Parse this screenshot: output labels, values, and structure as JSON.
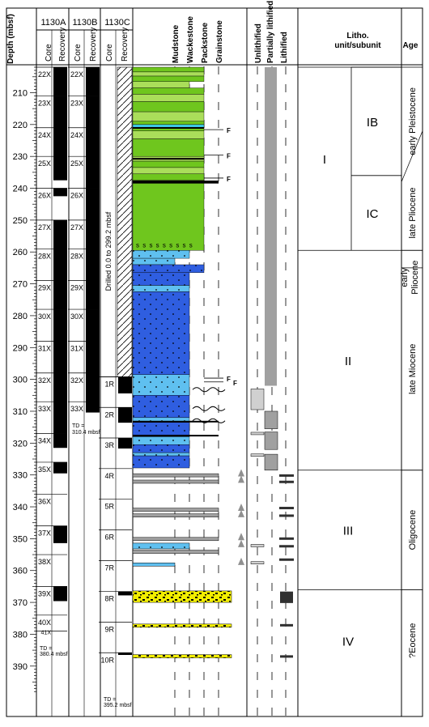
{
  "header": {
    "depth": "Depth (mbsf)",
    "holes": [
      "1130A",
      "1130B",
      "1130C"
    ],
    "core": "Core",
    "recovery": "Recovery",
    "lith_labels": [
      "Mudstone",
      "Wackestone",
      "Packstone",
      "Grainstone"
    ],
    "lithif_labels": [
      "Unlithified",
      "Partially lithified",
      "Lithified"
    ],
    "unit_title_1": "Litho.",
    "unit_title_2": "unit/subunit",
    "age": "Age"
  },
  "depth_ticks": [
    210,
    220,
    230,
    240,
    250,
    260,
    270,
    280,
    290,
    300,
    310,
    320,
    330,
    340,
    350,
    360,
    370,
    380,
    390
  ],
  "cores_A": [
    {
      "label": "22X",
      "top": 202,
      "bottom": 211,
      "rec": 211
    },
    {
      "label": "23X",
      "top": 211,
      "bottom": 221,
      "rec": 221
    },
    {
      "label": "24X",
      "top": 221,
      "bottom": 230,
      "rec": 230
    },
    {
      "label": "25X",
      "top": 230,
      "bottom": 240,
      "rec": 237.5
    },
    {
      "label": "26X",
      "top": 240,
      "bottom": 250,
      "rec": 242.5
    },
    {
      "label": "27X",
      "top": 250,
      "bottom": 259,
      "rec": 259
    },
    {
      "label": "28X",
      "top": 259,
      "bottom": 269,
      "rec": 269
    },
    {
      "label": "29X",
      "top": 269,
      "bottom": 278,
      "rec": 278
    },
    {
      "label": "30X",
      "top": 278,
      "bottom": 288,
      "rec": 288
    },
    {
      "label": "31X",
      "top": 288,
      "bottom": 298,
      "rec": 298
    },
    {
      "label": "32X",
      "top": 298,
      "bottom": 307,
      "rec": 307
    },
    {
      "label": "33X",
      "top": 307,
      "bottom": 317,
      "rec": 317
    },
    {
      "label": "34X",
      "top": 317,
      "bottom": 326,
      "rec": 321.5
    },
    {
      "label": "35X",
      "top": 326,
      "bottom": 336,
      "rec": 329.5
    },
    {
      "label": "36X",
      "top": 336,
      "bottom": 346,
      "rec": 336
    },
    {
      "label": "37X",
      "top": 346,
      "bottom": 355,
      "rec": 351.4
    },
    {
      "label": "38X",
      "top": 355,
      "bottom": 365,
      "rec": 355
    },
    {
      "label": "39X",
      "top": 365,
      "bottom": 374,
      "rec": 369.6
    },
    {
      "label": "40X",
      "top": 374,
      "bottom": 379,
      "rec": 374
    },
    {
      "label": "41X",
      "top": 379,
      "bottom": 380.4,
      "rec": 379
    }
  ],
  "td_A": {
    "line1": "TD =",
    "line2": "380.4 mbsf"
  },
  "cores_B": [
    {
      "label": "22X",
      "top": 202,
      "bottom": 211,
      "rec": 211
    },
    {
      "label": "23X",
      "top": 211,
      "bottom": 221,
      "rec": 221
    },
    {
      "label": "24X",
      "top": 221,
      "bottom": 230,
      "rec": 230
    },
    {
      "label": "25X",
      "top": 230,
      "bottom": 240,
      "rec": 240
    },
    {
      "label": "26X",
      "top": 240,
      "bottom": 250,
      "rec": 250
    },
    {
      "label": "27X",
      "top": 250,
      "bottom": 259,
      "rec": 259
    },
    {
      "label": "28X",
      "top": 259,
      "bottom": 269,
      "rec": 269
    },
    {
      "label": "29X",
      "top": 269,
      "bottom": 278,
      "rec": 278
    },
    {
      "label": "30X",
      "top": 278,
      "bottom": 288,
      "rec": 288
    },
    {
      "label": "31X",
      "top": 288,
      "bottom": 298,
      "rec": 298
    },
    {
      "label": "32X",
      "top": 298,
      "bottom": 307,
      "rec": 307
    },
    {
      "label": "33X",
      "top": 307,
      "bottom": 310.4,
      "rec": 310.4
    }
  ],
  "td_B": {
    "line1": "TD =",
    "line2": "310.4 mbsf"
  },
  "drilled_C": {
    "text": "Drilled 0.0 to 299.2 mbsf",
    "top": 202,
    "bottom": 299.2
  },
  "cores_C": [
    {
      "label": "1R",
      "top": 299.2,
      "bottom": 308.8,
      "rec": 304.4
    },
    {
      "label": "2R",
      "top": 308.8,
      "bottom": 318.4,
      "rec": 313.6
    },
    {
      "label": "3R",
      "top": 318.4,
      "bottom": 328.0,
      "rec": 321.7
    },
    {
      "label": "4R",
      "top": 328.0,
      "bottom": 337.6,
      "rec": 328.0
    },
    {
      "label": "5R",
      "top": 337.6,
      "bottom": 347.2,
      "rec": 337.6
    },
    {
      "label": "6R",
      "top": 347.2,
      "bottom": 356.9,
      "rec": 347.2
    },
    {
      "label": "7R",
      "top": 356.9,
      "bottom": 366.6,
      "rec": 356.9
    },
    {
      "label": "8R",
      "top": 366.6,
      "bottom": 376.2,
      "rec": 367.8
    },
    {
      "label": "9R",
      "top": 376.2,
      "bottom": 385.8,
      "rec": 376.2
    },
    {
      "label": "10R",
      "top": 385.8,
      "bottom": 395.2,
      "rec": 386.5
    }
  ],
  "td_C": {
    "line1": "TD =",
    "line2": "395.2 mbsf"
  },
  "fossil_marker": "F",
  "sponge_mark": "s s s s s s s s s",
  "units": [
    {
      "label": "I",
      "top": 202,
      "bottom": 259.5
    },
    {
      "label": "II",
      "top": 259.5,
      "bottom": 328.5
    },
    {
      "label": "III",
      "top": 328.5,
      "bottom": 366
    },
    {
      "label": "IV",
      "top": 366,
      "bottom": 398
    }
  ],
  "subunits": [
    {
      "label": "IB",
      "top": 202,
      "bottom": 236
    },
    {
      "label": "IC",
      "top": 236,
      "bottom": 259.5
    }
  ],
  "ages": [
    {
      "label": "early Pleistocene",
      "top": 202,
      "bottom": 236
    },
    {
      "label": "late Pliocene",
      "top": 236,
      "bottom": 259.5
    },
    {
      "label": "early Pliocene",
      "top": 259.5,
      "bottom": 265
    },
    {
      "label": "late Miocene",
      "top": 265,
      "bottom": 328.5
    },
    {
      "label": "Oligocene",
      "top": 328.5,
      "bottom": 366
    },
    {
      "label": "?Eocene",
      "top": 366,
      "bottom": 398
    }
  ],
  "colors": {
    "green": "#6fc61e",
    "light_green": "#aade5a",
    "blue": "#2f5ee0",
    "light_blue": "#5fc0f0",
    "cyan": "#3ec8e8",
    "yellow": "#f2ee00",
    "gray": "#a0a0a0",
    "light_gray": "#d0d0d0"
  }
}
